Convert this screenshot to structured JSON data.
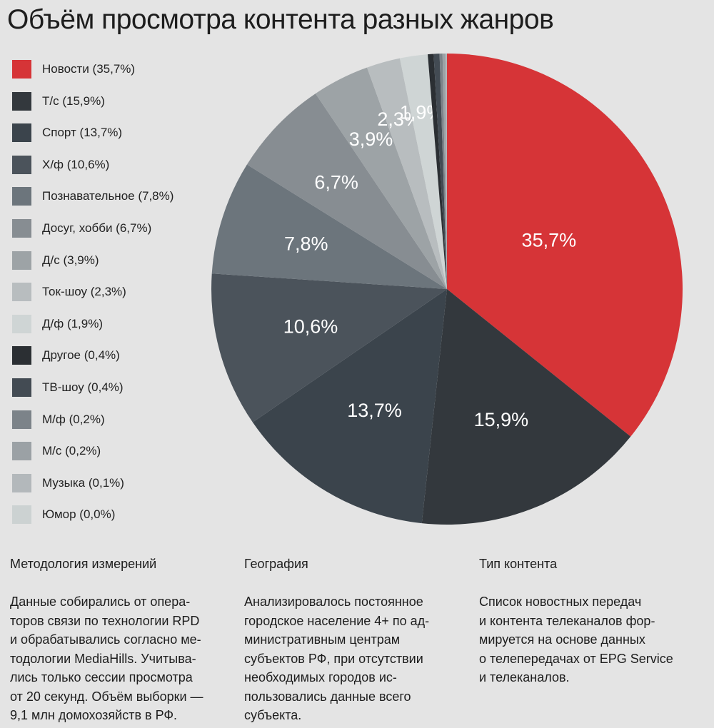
{
  "chart_data": {
    "type": "pie",
    "title": "Объём просмотра контента разных жанров",
    "unit": "%",
    "slices": [
      {
        "label": "Новости (35,7%)",
        "value": 35.7,
        "display": "35,7%",
        "color": "#d63437"
      },
      {
        "label": "Т/с (15,9%)",
        "value": 15.9,
        "display": "15,9%",
        "color": "#33383d"
      },
      {
        "label": "Спорт (13,7%)",
        "value": 13.7,
        "display": "13,7%",
        "color": "#3b444c"
      },
      {
        "label": "Х/ф (10,6%)",
        "value": 10.6,
        "display": "10,6%",
        "color": "#4b535b"
      },
      {
        "label": "Познавательное (7,8%)",
        "value": 7.8,
        "display": "7,8%",
        "color": "#6c757c"
      },
      {
        "label": "Досуг, хобби (6,7%)",
        "value": 6.7,
        "display": "6,7%",
        "color": "#878d92"
      },
      {
        "label": "Д/с (3,9%)",
        "value": 3.9,
        "display": "3,9%",
        "color": "#9da3a6"
      },
      {
        "label": "Ток-шоу (2,3%)",
        "value": 2.3,
        "display": "2,3%",
        "color": "#b8bdbf"
      },
      {
        "label": "Д/ф (1,9%)",
        "value": 1.9,
        "display": "1,9%",
        "color": "#cfd5d5"
      },
      {
        "label": "Другое (0,4%)",
        "value": 0.4,
        "display": "",
        "color": "#2b2f33"
      },
      {
        "label": "ТВ-шоу (0,4%)",
        "value": 0.4,
        "display": "",
        "color": "#434b53"
      },
      {
        "label": "М/ф (0,2%)",
        "value": 0.2,
        "display": "",
        "color": "#7c8389"
      },
      {
        "label": "М/с (0,2%)",
        "value": 0.2,
        "display": "",
        "color": "#9ba1a5"
      },
      {
        "label": "Музыка (0,1%)",
        "value": 0.1,
        "display": "",
        "color": "#b3b8bb"
      },
      {
        "label": "Юмор (0,0%)",
        "value": 0.0,
        "display": "",
        "color": "#ccd2d2"
      }
    ]
  },
  "info": [
    {
      "heading": "Методология измерений",
      "text": "Данные собирались от опера-\nторов связи по технологии RPD\nи обрабатывались согласно ме-\nтодологии MediaHills. Учитыва-\nлись только сессии просмотра\nот 20 секунд. Объём выборки —\n9,1 млн домохозяйств в РФ."
    },
    {
      "heading": "География",
      "text": "Анализировалось постоянное\nгородское население 4+ по ад-\nминистративным центрам\nсубъектов РФ, при отсутствии\nнеобходимых городов ис-\nпользовались данные всего\nсубъекта."
    },
    {
      "heading": "Тип контента",
      "text": "Список новостных передач\nи контента телеканалов фор-\nмируется на основе данных\nо телепередачах от EPG Service\nи телеканалов."
    }
  ]
}
